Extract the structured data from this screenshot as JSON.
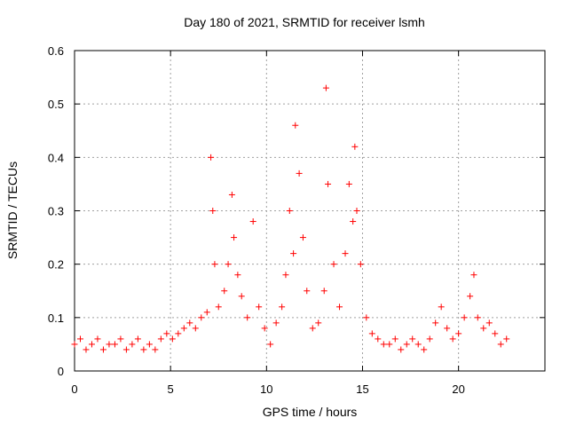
{
  "chart_data": {
    "type": "scatter",
    "title": "Day 180 of 2021, SRMTID for receiver lsmh",
    "xlabel": "GPS time / hours",
    "ylabel": "SRMTID / TECUs",
    "xlim": [
      0,
      24.5
    ],
    "ylim": [
      0,
      0.6
    ],
    "xticks": [
      0,
      5,
      10,
      15,
      20
    ],
    "xtick_labels": [
      "0",
      "5",
      "10",
      "15",
      "20"
    ],
    "yticks": [
      0,
      0.1,
      0.2,
      0.3,
      0.4,
      0.5,
      0.6
    ],
    "ytick_labels": [
      "0",
      "0.1",
      "0.2",
      "0.3",
      "0.4",
      "0.5",
      "0.6"
    ],
    "grid": true,
    "marker": "+",
    "series": [
      {
        "name": "SRMTID",
        "color": "#ff0000",
        "x": [
          0.0,
          0.3,
          0.6,
          0.9,
          1.2,
          1.5,
          1.8,
          2.1,
          2.4,
          2.7,
          3.0,
          3.3,
          3.6,
          3.9,
          4.2,
          4.5,
          4.8,
          5.1,
          5.4,
          5.7,
          6.0,
          6.3,
          6.6,
          6.9,
          7.1,
          7.2,
          7.3,
          7.5,
          7.8,
          8.0,
          8.2,
          8.3,
          8.5,
          8.7,
          9.0,
          9.3,
          9.6,
          9.9,
          10.2,
          10.5,
          10.8,
          11.0,
          11.2,
          11.4,
          11.5,
          11.7,
          11.9,
          12.1,
          12.4,
          12.7,
          13.0,
          13.1,
          13.2,
          13.5,
          13.8,
          14.1,
          14.3,
          14.5,
          14.6,
          14.7,
          14.9,
          15.2,
          15.5,
          15.8,
          16.1,
          16.4,
          16.7,
          17.0,
          17.3,
          17.6,
          17.9,
          18.2,
          18.5,
          18.8,
          19.1,
          19.4,
          19.7,
          20.0,
          20.3,
          20.6,
          20.8,
          21.0,
          21.3,
          21.6,
          21.9,
          22.2,
          22.5
        ],
        "y": [
          0.05,
          0.06,
          0.04,
          0.05,
          0.06,
          0.04,
          0.05,
          0.05,
          0.06,
          0.04,
          0.05,
          0.06,
          0.04,
          0.05,
          0.04,
          0.06,
          0.07,
          0.06,
          0.07,
          0.08,
          0.09,
          0.08,
          0.1,
          0.11,
          0.4,
          0.3,
          0.2,
          0.12,
          0.15,
          0.2,
          0.33,
          0.25,
          0.18,
          0.14,
          0.1,
          0.28,
          0.12,
          0.08,
          0.05,
          0.09,
          0.12,
          0.18,
          0.3,
          0.22,
          0.46,
          0.37,
          0.25,
          0.15,
          0.08,
          0.09,
          0.15,
          0.53,
          0.35,
          0.2,
          0.12,
          0.22,
          0.35,
          0.28,
          0.42,
          0.3,
          0.2,
          0.1,
          0.07,
          0.06,
          0.05,
          0.05,
          0.06,
          0.04,
          0.05,
          0.06,
          0.05,
          0.04,
          0.06,
          0.09,
          0.12,
          0.08,
          0.06,
          0.07,
          0.1,
          0.14,
          0.18,
          0.1,
          0.08,
          0.09,
          0.07,
          0.05,
          0.06
        ]
      }
    ]
  }
}
